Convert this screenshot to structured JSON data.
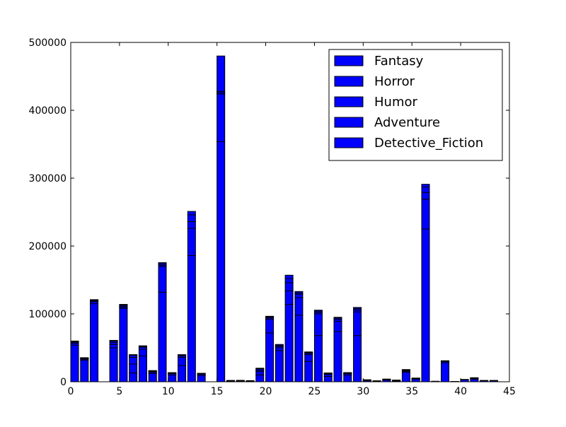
{
  "chart_data": {
    "type": "bar",
    "stacked": true,
    "title": "",
    "xlabel": "",
    "ylabel": "",
    "xlim": [
      0,
      45
    ],
    "ylim": [
      0,
      500000
    ],
    "x_ticks": [
      0,
      5,
      10,
      15,
      20,
      25,
      30,
      35,
      40,
      45
    ],
    "y_ticks": [
      0,
      100000,
      200000,
      300000,
      400000,
      500000
    ],
    "grid": false,
    "legend_position": "top-right",
    "bar_color": "#0000ff",
    "edge_color": "#000000",
    "x": [
      0,
      1,
      2,
      3,
      4,
      5,
      6,
      7,
      8,
      9,
      10,
      11,
      12,
      13,
      14,
      15,
      16,
      17,
      18,
      19,
      20,
      21,
      22,
      23,
      24,
      25,
      26,
      27,
      28,
      29,
      30,
      31,
      32,
      33,
      34,
      35,
      36,
      37,
      38,
      39,
      40,
      41,
      42,
      43
    ],
    "series": [
      {
        "name": "Fantasy",
        "values": [
          54000,
          32000,
          115000,
          0,
          50000,
          108000,
          13000,
          38000,
          12000,
          132000,
          10000,
          24000,
          186000,
          9000,
          0,
          354000,
          0,
          0,
          0,
          10000,
          72000,
          46000,
          114000,
          98000,
          30000,
          68000,
          8000,
          74000,
          10000,
          68000,
          0,
          0,
          0,
          0,
          14000,
          0,
          225000,
          0,
          0,
          0,
          0,
          0,
          0,
          0
        ]
      },
      {
        "name": "Horror",
        "values": [
          3000,
          1500,
          3000,
          0,
          5000,
          2000,
          13000,
          10000,
          2000,
          38000,
          2000,
          12000,
          40000,
          2000,
          0,
          70000,
          500,
          800,
          500,
          5000,
          20000,
          4000,
          20000,
          26000,
          10000,
          32000,
          3000,
          15000,
          2000,
          35000,
          1500,
          1000,
          2500,
          1000,
          1500,
          4000,
          44000,
          800,
          28000,
          500,
          3000,
          4000,
          1500,
          1500
        ]
      },
      {
        "name": "Humor",
        "values": [
          1500,
          1000,
          1500,
          0,
          3000,
          1500,
          10000,
          3000,
          1000,
          2000,
          500,
          2000,
          10000,
          500,
          0,
          2000,
          500,
          500,
          500,
          2000,
          2000,
          2000,
          12000,
          5000,
          2000,
          2000,
          1000,
          3000,
          500,
          3000,
          500,
          500,
          500,
          500,
          1000,
          500,
          10000,
          0,
          2000,
          0,
          500,
          1000,
          500,
          500
        ]
      },
      {
        "name": "Adventure",
        "values": [
          1000,
          500,
          1000,
          0,
          2000,
          1500,
          3000,
          1000,
          1000,
          2000,
          500,
          1500,
          10000,
          500,
          0,
          2000,
          500,
          500,
          500,
          2000,
          1500,
          1500,
          6000,
          2000,
          1000,
          2000,
          500,
          2000,
          500,
          2000,
          500,
          0,
          500,
          500,
          1000,
          500,
          8000,
          0,
          500,
          0,
          0,
          500,
          0,
          0
        ]
      },
      {
        "name": "Detective_Fiction",
        "values": [
          500,
          500,
          500,
          0,
          1000,
          1000,
          1000,
          1000,
          500,
          1500,
          500,
          500,
          5000,
          500,
          0,
          52000,
          500,
          300,
          200,
          1000,
          1000,
          1500,
          5000,
          2000,
          1000,
          1500,
          500,
          1000,
          500,
          1500,
          500,
          0,
          500,
          500,
          500,
          500,
          4000,
          0,
          500,
          0,
          0,
          500,
          0,
          0
        ]
      }
    ]
  }
}
